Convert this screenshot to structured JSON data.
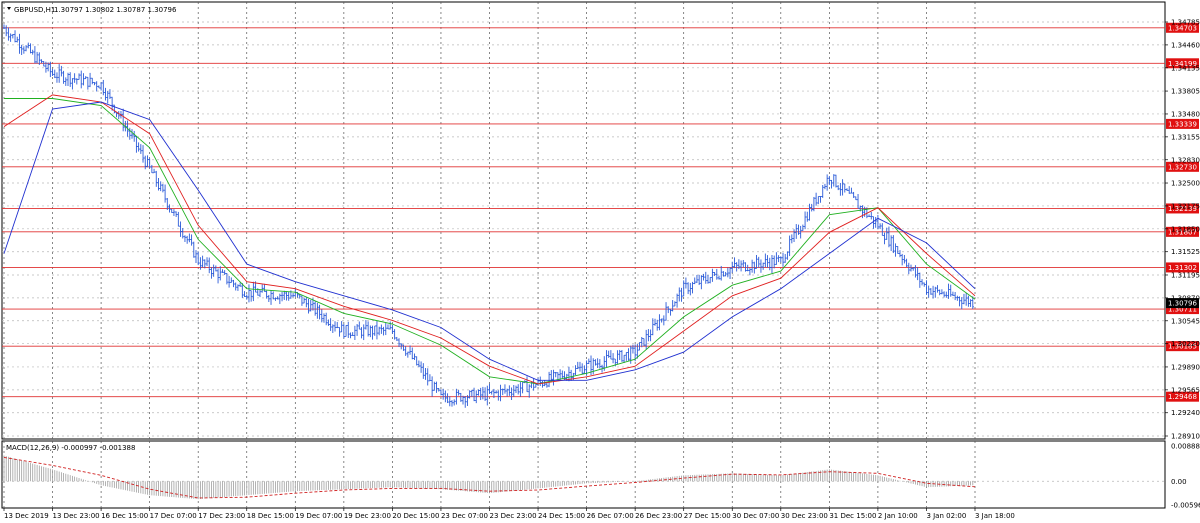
{
  "main_chart": {
    "symbol": "GBPUSD,H1",
    "quote": "1.30797 1.30802 1.30787 1.30796",
    "price_ticks": [
      "1.34785",
      "1.34460",
      "1.34135",
      "1.33805",
      "1.33480",
      "1.33155",
      "1.32830",
      "1.32500",
      "1.32175",
      "1.31850",
      "1.31525",
      "1.31195",
      "1.30870",
      "1.30545",
      "1.30220",
      "1.29890",
      "1.29565",
      "1.29240",
      "1.28910"
    ],
    "levels": [
      {
        "label": "1.34703",
        "value": 1.34703
      },
      {
        "label": "1.34199",
        "value": 1.34199
      },
      {
        "label": "1.33339",
        "value": 1.33339
      },
      {
        "label": "1.32730",
        "value": 1.3273
      },
      {
        "label": "1.32139",
        "value": 1.32139
      },
      {
        "label": "1.31807",
        "value": 1.31807
      },
      {
        "label": "1.31302",
        "value": 1.31302
      },
      {
        "label": "1.30711",
        "value": 1.30711
      },
      {
        "label": "1.30185",
        "value": 1.30185
      },
      {
        "label": "1.29468",
        "value": 1.29468
      }
    ],
    "current_price": "1.30796",
    "time_labels": [
      "13 Dec 2019",
      "13 Dec 23:00",
      "16 Dec 15:00",
      "17 Dec 07:00",
      "17 Dec 23:00",
      "18 Dec 15:00",
      "19 Dec 07:00",
      "19 Dec 23:00",
      "20 Dec 15:00",
      "23 Dec 07:00",
      "23 Dec 23:00",
      "24 Dec 15:00",
      "26 Dec 07:00",
      "26 Dec 23:00",
      "27 Dec 15:00",
      "30 Dec 07:00",
      "30 Dec 23:00",
      "31 Dec 15:00",
      "2 Jan 10:00",
      "3 Jan 02:00",
      "3 Jan 18:00"
    ]
  },
  "chart_data": [
    {
      "type": "line",
      "title": "GBPUSD,H1",
      "ylim": [
        1.2891,
        1.34785
      ],
      "x": [
        "13 Dec 2019",
        "13 Dec 23:00",
        "16 Dec 15:00",
        "17 Dec 07:00",
        "17 Dec 23:00",
        "18 Dec 15:00",
        "19 Dec 07:00",
        "19 Dec 23:00",
        "20 Dec 15:00",
        "23 Dec 07:00",
        "23 Dec 23:00",
        "24 Dec 15:00",
        "26 Dec 07:00",
        "26 Dec 23:00",
        "27 Dec 15:00",
        "30 Dec 07:00",
        "30 Dec 23:00",
        "31 Dec 15:00",
        "2 Jan 10:00",
        "3 Jan 02:00",
        "3 Jan 18:00"
      ],
      "series": [
        {
          "values": [
            1.347,
            1.3405,
            1.339,
            1.327,
            1.314,
            1.3095,
            1.309,
            1.304,
            1.304,
            1.2945,
            1.295,
            1.2965,
            1.299,
            1.301,
            1.31,
            1.313,
            1.314,
            1.326,
            1.319,
            1.31,
            1.308
          ]
        },
        {
          "values": [
            1.337,
            1.337,
            1.336,
            1.33,
            1.317,
            1.31,
            1.3095,
            1.3065,
            1.305,
            1.302,
            1.2975,
            1.2965,
            1.298,
            1.3,
            1.306,
            1.3105,
            1.3125,
            1.3205,
            1.3215,
            1.3135,
            1.3085
          ]
        },
        {
          "values": [
            1.333,
            1.3375,
            1.3365,
            1.332,
            1.319,
            1.311,
            1.31,
            1.3075,
            1.3055,
            1.303,
            1.299,
            1.2965,
            1.2975,
            1.299,
            1.304,
            1.309,
            1.3115,
            1.318,
            1.3215,
            1.315,
            1.309
          ]
        },
        {
          "values": [
            1.315,
            1.3355,
            1.3365,
            1.334,
            1.324,
            1.3135,
            1.311,
            1.309,
            1.307,
            1.3045,
            1.3,
            1.297,
            1.297,
            1.2985,
            1.301,
            1.306,
            1.31,
            1.315,
            1.32,
            1.3165,
            1.31
          ]
        }
      ]
    },
    {
      "type": "bar",
      "title": "MACD(12,26,9) -0.000997 -0.001388",
      "ylim": [
        -0.005969,
        0.00888
      ],
      "x": [
        "13 Dec 2019",
        "13 Dec 23:00",
        "16 Dec 15:00",
        "17 Dec 07:00",
        "17 Dec 23:00",
        "18 Dec 15:00",
        "19 Dec 07:00",
        "19 Dec 23:00",
        "20 Dec 15:00",
        "23 Dec 07:00",
        "23 Dec 23:00",
        "24 Dec 15:00",
        "26 Dec 07:00",
        "26 Dec 23:00",
        "27 Dec 15:00",
        "30 Dec 07:00",
        "30 Dec 23:00",
        "31 Dec 15:00",
        "2 Jan 10:00",
        "3 Jan 02:00",
        "3 Jan 18:00"
      ],
      "series": [
        {
          "values": [
            0.0065,
            0.003,
            -0.001,
            -0.0035,
            -0.0045,
            -0.0035,
            -0.0025,
            -0.002,
            -0.0015,
            -0.002,
            -0.003,
            -0.0018,
            -0.0005,
            0.0,
            0.0015,
            0.002,
            0.0015,
            0.003,
            0.0015,
            -0.0015,
            -0.001
          ]
        },
        {
          "values": [
            0.006,
            0.004,
            0.0015,
            -0.002,
            -0.0042,
            -0.004,
            -0.003,
            -0.0022,
            -0.0018,
            -0.0018,
            -0.0025,
            -0.0022,
            -0.0012,
            -0.0003,
            0.0008,
            0.0018,
            0.0016,
            0.0024,
            0.002,
            -0.0005,
            -0.0014
          ]
        }
      ],
      "tick_labels": [
        "0.00888",
        "0.00",
        "-0.005969"
      ]
    }
  ]
}
